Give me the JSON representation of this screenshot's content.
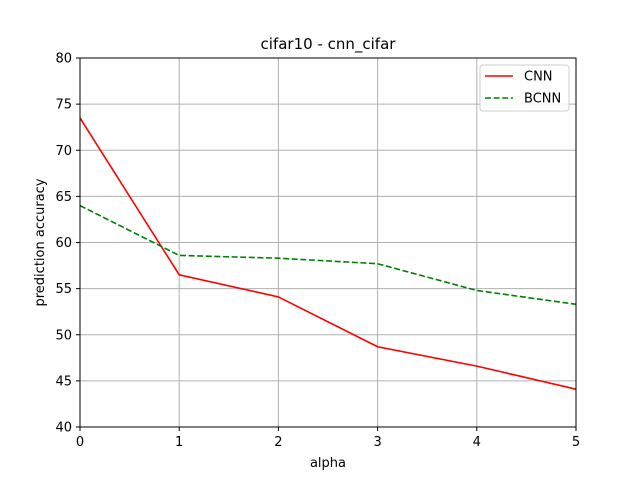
{
  "chart_data": {
    "type": "line",
    "title": "cifar10 - cnn_cifar",
    "xlabel": "alpha",
    "ylabel": "prediction accuracy",
    "xlim": [
      0,
      5
    ],
    "ylim": [
      40,
      80
    ],
    "xticks": [
      0,
      1,
      2,
      3,
      4,
      5
    ],
    "yticks": [
      40,
      45,
      50,
      55,
      60,
      65,
      70,
      75,
      80
    ],
    "grid": true,
    "legend_position": "top-right",
    "x": [
      0,
      1,
      2,
      3,
      4,
      5
    ],
    "series": [
      {
        "name": "CNN",
        "values": [
          73.5,
          56.5,
          54.1,
          48.7,
          46.6,
          44.1
        ],
        "color": "#ff0000",
        "style": "solid"
      },
      {
        "name": "BCNN",
        "values": [
          64.0,
          58.6,
          58.3,
          57.7,
          54.8,
          53.3
        ],
        "color": "#008000",
        "style": "dashed"
      }
    ]
  }
}
